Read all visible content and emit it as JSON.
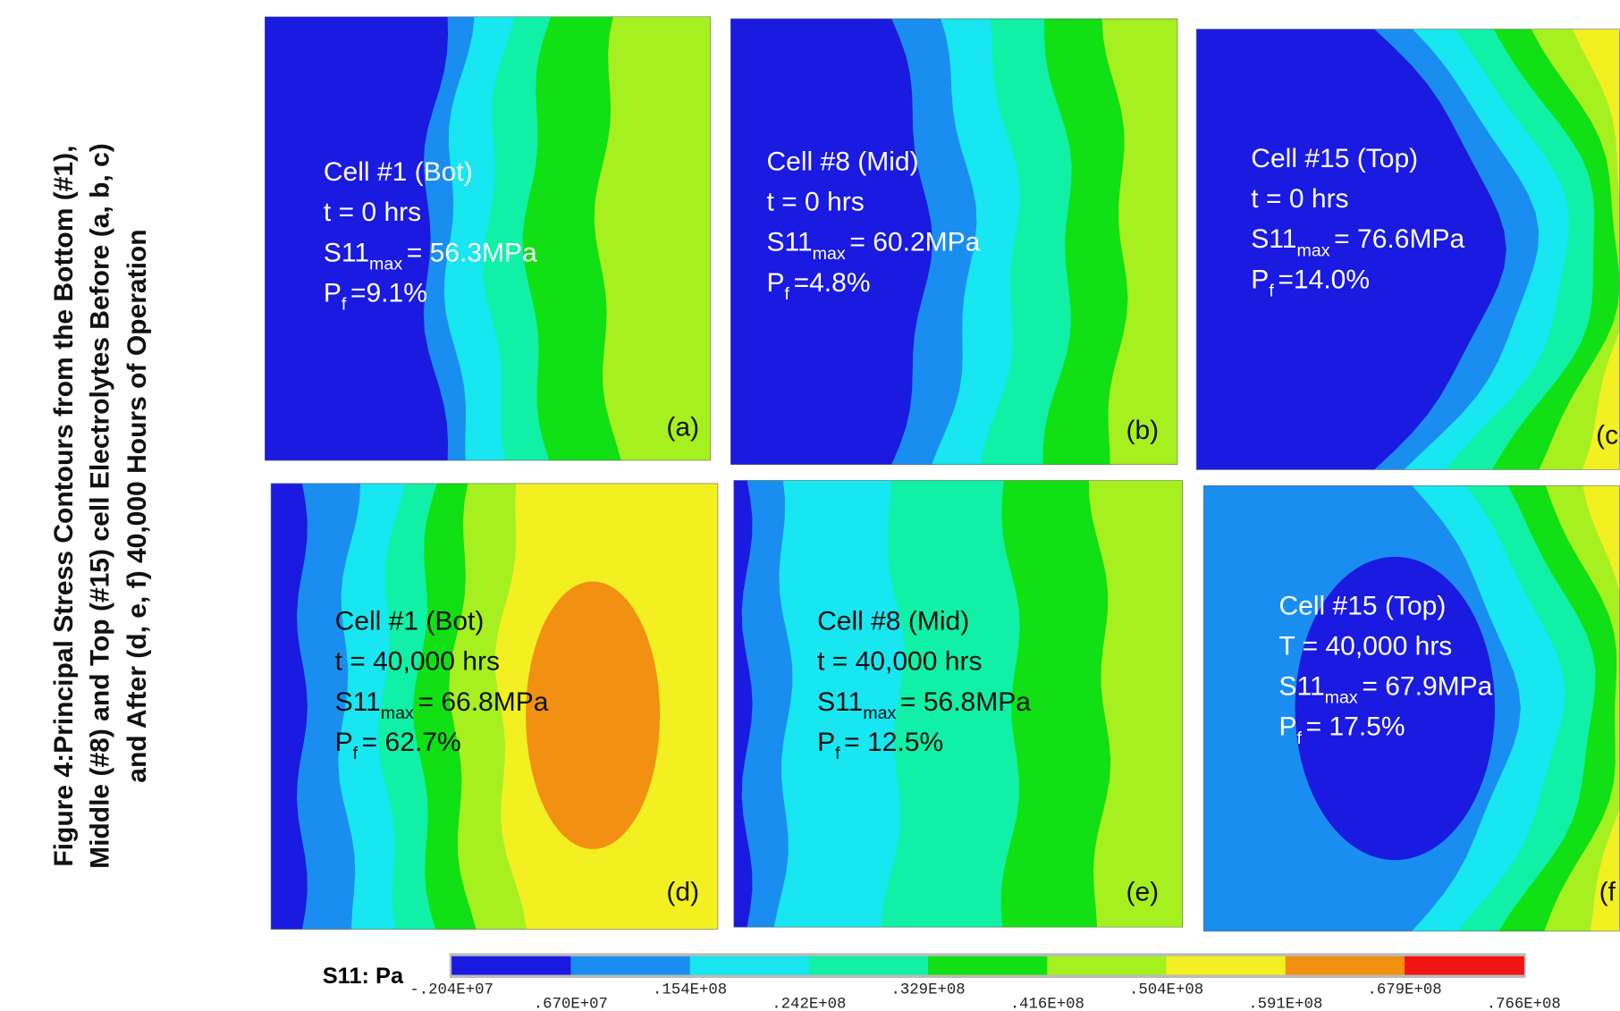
{
  "caption": {
    "lines": [
      "Figure 4:Principal Stress Contours from the Bottom (#1),",
      "Middle (#8) and Top (#15) cell Electrolytes Before (a, b, c)",
      "and After (d, e, f) 40,000 Hours of Operation"
    ]
  },
  "panels": [
    {
      "label": "(a)",
      "lines": [
        {
          "text": "Cell #1 (Bot)"
        },
        {
          "text": "t = 0 hrs"
        },
        {
          "text": "S11",
          "sub": "max",
          "rest": "= 56.3MPa"
        },
        {
          "text": "P",
          "sub": "f",
          "rest": "=9.1%"
        }
      ]
    },
    {
      "label": "(b)",
      "lines": [
        {
          "text": "Cell #8 (Mid)"
        },
        {
          "text": "t = 0 hrs"
        },
        {
          "text": "S11",
          "sub": "max",
          "rest": "= 60.2MPa"
        },
        {
          "text": "P",
          "sub": "f",
          "rest": "=4.8%"
        }
      ]
    },
    {
      "label": "(c",
      "lines": [
        {
          "text": "Cell #15 (Top)"
        },
        {
          "text": "t = 0 hrs"
        },
        {
          "text": "S11",
          "sub": "max",
          "rest": "= 76.6MPa"
        },
        {
          "text": "P",
          "sub": "f",
          "rest": "=14.0%"
        }
      ]
    },
    {
      "label": "(d)",
      "lines": [
        {
          "text": "Cell #1 (Bot)"
        },
        {
          "text": "t = 40,000 hrs"
        },
        {
          "text": "S11",
          "sub": "max",
          "rest": "= 66.8MPa"
        },
        {
          "text": "P",
          "sub": "f",
          "rest": "= 62.7%"
        }
      ]
    },
    {
      "label": "(e)",
      "lines": [
        {
          "text": "Cell #8 (Mid)"
        },
        {
          "text": "t = 40,000 hrs"
        },
        {
          "text": "S11",
          "sub": "max",
          "rest": "= 56.8MPa"
        },
        {
          "text": "P",
          "sub": "f",
          "rest": "= 12.5%"
        }
      ]
    },
    {
      "label": "(f",
      "lines": [
        {
          "text": "Cell #15 (Top)"
        },
        {
          "text": "T = 40,000 hrs"
        },
        {
          "text": "S11",
          "sub": "max",
          "rest": "= 67.9MPa"
        },
        {
          "text": "P",
          "sub": "f",
          "rest": "= 17.5%"
        }
      ]
    }
  ],
  "colorbar": {
    "title": "S11: Pa",
    "colors": [
      "#1a1ae0",
      "#1a8ef0",
      "#18e6f0",
      "#10f0a6",
      "#10e014",
      "#a6f020",
      "#f2f020",
      "#f29012",
      "#f01414"
    ],
    "labels": [
      "-.204E+07",
      ".670E+07",
      ".154E+08",
      ".242E+08",
      ".329E+08",
      ".416E+08",
      ".504E+08",
      ".591E+08",
      ".679E+08",
      ".766E+08"
    ]
  }
}
